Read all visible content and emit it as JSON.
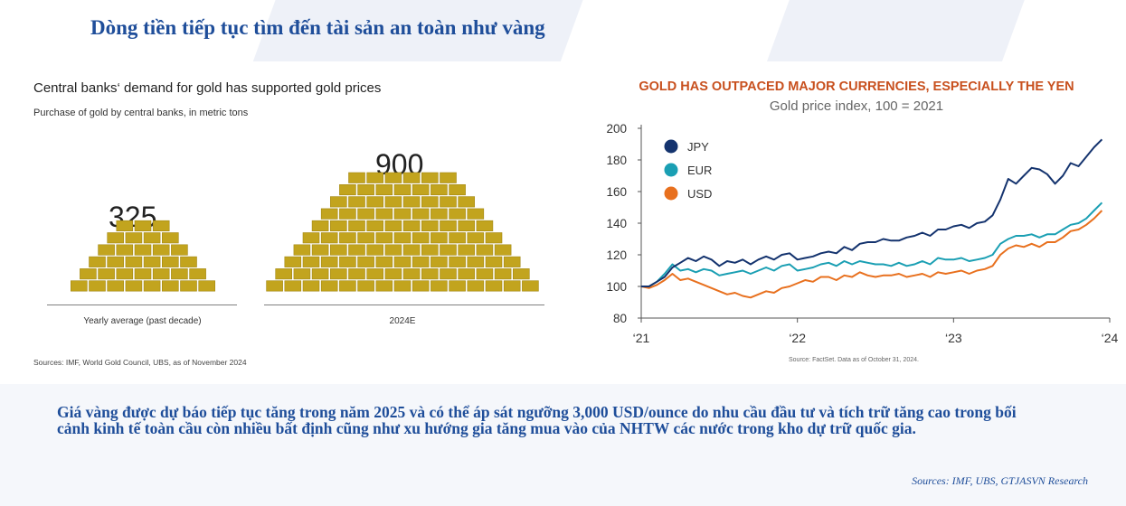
{
  "slide_title": "Dòng tiền tiếp tục tìm đến tài sản an toàn như vàng",
  "left_chart": {
    "title": "Central banks‘ demand for gold has supported gold prices",
    "subtitle": "Purchase of gold by central banks, in metric tons",
    "source": "Sources: IMF, World Gold Council, UBS, as of November 2024",
    "chart_data": {
      "type": "bar",
      "categories": [
        "Yearly average (past decade)",
        "2024E"
      ],
      "values": [
        325,
        900
      ],
      "value_labels": [
        "325",
        "900"
      ],
      "title": "Central banks‘ demand for gold has supported gold prices",
      "subtitle": "Purchase of gold by central banks, in metric tons",
      "ylabel": "",
      "color": "#c2a41e"
    }
  },
  "right_chart": {
    "title": "GOLD HAS OUTPACED MAJOR CURRENCIES, ESPECIALLY THE YEN",
    "subtitle": "Gold price index, 100 = 2021",
    "source": "Source: FactSet. Data as of October 31, 2024.",
    "chart_data": {
      "type": "line",
      "x_ticks": [
        "‘21",
        "‘22",
        "‘23",
        "‘24"
      ],
      "xlim": [
        2021.0,
        2024.0
      ],
      "ylim": [
        80,
        200
      ],
      "y_ticks": [
        80,
        100,
        120,
        140,
        160,
        180,
        200
      ],
      "legend_position": "top-left",
      "grid": false,
      "series": [
        {
          "name": "JPY",
          "color": "#14336e",
          "x": [
            2021.0,
            2021.05,
            2021.1,
            2021.15,
            2021.2,
            2021.25,
            2021.3,
            2021.35,
            2021.4,
            2021.45,
            2021.5,
            2021.55,
            2021.6,
            2021.65,
            2021.7,
            2021.75,
            2021.8,
            2021.85,
            2021.9,
            2021.95,
            2022.0,
            2022.05,
            2022.1,
            2022.15,
            2022.2,
            2022.25,
            2022.3,
            2022.35,
            2022.4,
            2022.45,
            2022.5,
            2022.55,
            2022.6,
            2022.65,
            2022.7,
            2022.75,
            2022.8,
            2022.85,
            2022.9,
            2022.95,
            2023.0,
            2023.05,
            2023.1,
            2023.15,
            2023.2,
            2023.25,
            2023.3,
            2023.35,
            2023.4,
            2023.45,
            2023.5,
            2023.55,
            2023.6,
            2023.65,
            2023.7,
            2023.75,
            2023.8,
            2023.85,
            2023.9,
            2023.95
          ],
          "values": [
            100,
            100,
            103,
            106,
            112,
            115,
            118,
            116,
            119,
            117,
            113,
            116,
            115,
            117,
            114,
            117,
            119,
            117,
            120,
            121,
            117,
            118,
            119,
            121,
            122,
            121,
            125,
            123,
            127,
            128,
            128,
            130,
            129,
            129,
            131,
            132,
            134,
            132,
            136,
            136,
            138,
            139,
            137,
            140,
            141,
            145,
            155,
            168,
            165,
            170,
            175,
            174,
            171,
            165,
            170,
            178,
            176,
            182,
            188,
            193
          ]
        },
        {
          "name": "EUR",
          "color": "#1a9fb3",
          "x": [
            2021.0,
            2021.05,
            2021.1,
            2021.15,
            2021.2,
            2021.25,
            2021.3,
            2021.35,
            2021.4,
            2021.45,
            2021.5,
            2021.55,
            2021.6,
            2021.65,
            2021.7,
            2021.75,
            2021.8,
            2021.85,
            2021.9,
            2021.95,
            2022.0,
            2022.05,
            2022.1,
            2022.15,
            2022.2,
            2022.25,
            2022.3,
            2022.35,
            2022.4,
            2022.45,
            2022.5,
            2022.55,
            2022.6,
            2022.65,
            2022.7,
            2022.75,
            2022.8,
            2022.85,
            2022.9,
            2022.95,
            2023.0,
            2023.05,
            2023.1,
            2023.15,
            2023.2,
            2023.25,
            2023.3,
            2023.35,
            2023.4,
            2023.45,
            2023.5,
            2023.55,
            2023.6,
            2023.65,
            2023.7,
            2023.75,
            2023.8,
            2023.85,
            2023.9,
            2023.95
          ],
          "values": [
            100,
            100,
            103,
            108,
            114,
            110,
            111,
            109,
            111,
            110,
            107,
            108,
            109,
            110,
            108,
            110,
            112,
            110,
            113,
            114,
            110,
            111,
            112,
            114,
            115,
            113,
            116,
            114,
            116,
            115,
            114,
            114,
            113,
            115,
            113,
            114,
            116,
            114,
            118,
            117,
            117,
            118,
            116,
            117,
            118,
            120,
            127,
            130,
            132,
            132,
            133,
            131,
            133,
            133,
            136,
            139,
            140,
            143,
            148,
            153
          ]
        },
        {
          "name": "USD",
          "color": "#e8701e",
          "x": [
            2021.0,
            2021.05,
            2021.1,
            2021.15,
            2021.2,
            2021.25,
            2021.3,
            2021.35,
            2021.4,
            2021.45,
            2021.5,
            2021.55,
            2021.6,
            2021.65,
            2021.7,
            2021.75,
            2021.8,
            2021.85,
            2021.9,
            2021.95,
            2022.0,
            2022.05,
            2022.1,
            2022.15,
            2022.2,
            2022.25,
            2022.3,
            2022.35,
            2022.4,
            2022.45,
            2022.5,
            2022.55,
            2022.6,
            2022.65,
            2022.7,
            2022.75,
            2022.8,
            2022.85,
            2022.9,
            2022.95,
            2023.0,
            2023.05,
            2023.1,
            2023.15,
            2023.2,
            2023.25,
            2023.3,
            2023.35,
            2023.4,
            2023.45,
            2023.5,
            2023.55,
            2023.6,
            2023.65,
            2023.7,
            2023.75,
            2023.8,
            2023.85,
            2023.9,
            2023.95
          ],
          "values": [
            100,
            99,
            101,
            104,
            108,
            104,
            105,
            103,
            101,
            99,
            97,
            95,
            96,
            94,
            93,
            95,
            97,
            96,
            99,
            100,
            102,
            104,
            103,
            106,
            106,
            104,
            107,
            106,
            109,
            107,
            106,
            107,
            107,
            108,
            106,
            107,
            108,
            106,
            109,
            108,
            109,
            110,
            108,
            110,
            111,
            113,
            120,
            124,
            126,
            125,
            127,
            125,
            128,
            128,
            131,
            135,
            136,
            139,
            143,
            148
          ]
        }
      ]
    }
  },
  "body_text": "Giá vàng được dự báo tiếp tục tăng trong năm 2025 và có thể áp sát ngưỡng 3,000 USD/ounce do nhu cầu đầu tư và tích trữ tăng cao trong bối cảnh kinh tế toàn cầu còn nhiều bất định cũng như xu hướng gia tăng mua vào của NHTW các nước trong kho dự trữ quốc gia.",
  "footer_source": "Sources: IMF, UBS, GTJASVN Research"
}
